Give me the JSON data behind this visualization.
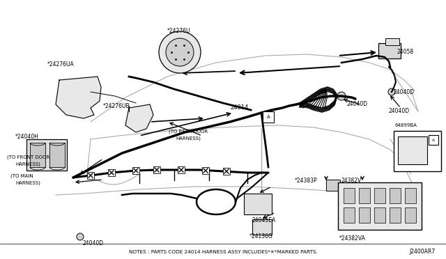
{
  "bg_color": "#ffffff",
  "line_color": "#000000",
  "fig_width": 6.4,
  "fig_height": 3.72,
  "dpi": 100,
  "notes_text": "NOTES : PARTS CODE 24014 HARNESS ASSY INCLUDES*✳*MARKED PARTS.",
  "notes_text2": "NOTES : PARTS CODE 24014 HARNESS ASSY INCLUDES",
  "diagram_id": "J2400AR7"
}
